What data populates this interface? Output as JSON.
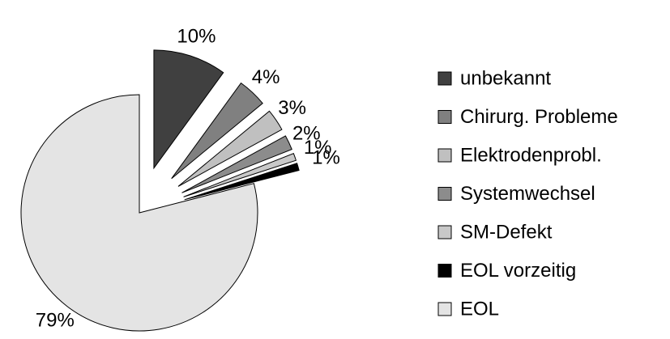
{
  "chart_data": {
    "type": "pie",
    "categories": [
      "unbekannt",
      "Chirurg. Probleme",
      "Elektrodenprobl.",
      "Systemwechsel",
      "SM-Defekt",
      "EOL vorzeitig",
      "EOL"
    ],
    "values": [
      10,
      4,
      3,
      2,
      1,
      1,
      79
    ],
    "value_labels": [
      "10%",
      "4%",
      "3%",
      "2%",
      "1%",
      "1%",
      "79%"
    ],
    "colors": [
      "#404040",
      "#808080",
      "#c0c0c0",
      "#8c8c8c",
      "#c8c8c8",
      "#000000",
      "#e4e4e4"
    ],
    "legend": "right"
  }
}
